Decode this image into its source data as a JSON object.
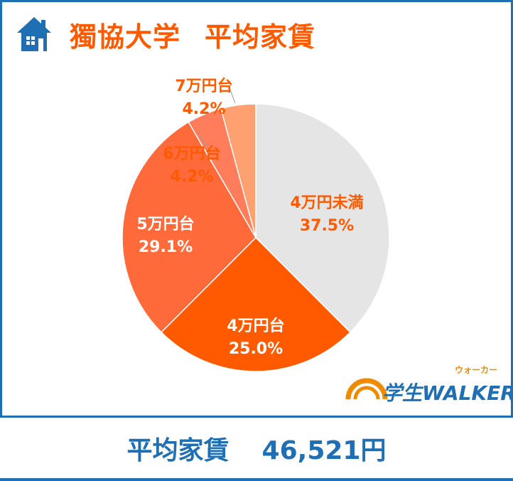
{
  "header": {
    "university": "獨協大学",
    "subject": "平均家賃"
  },
  "footer": {
    "label": "平均家賃",
    "value": "46,521円"
  },
  "logo": {
    "text": "学生WALKER",
    "kana": "ウォーカー"
  },
  "colors": {
    "brand_blue": "#1f6fb4",
    "accent_orange": "#ff5a00"
  },
  "chart_data": {
    "type": "pie",
    "title": "",
    "slices": [
      {
        "label": "4万円未満",
        "pct_label": "37.5%",
        "value": 37.5,
        "color": "#e5e5e5",
        "text_color": "#ff5a00"
      },
      {
        "label": "4万円台",
        "pct_label": "25.0%",
        "value": 25.0,
        "color": "#ff5a00",
        "text_color": "#ffffff"
      },
      {
        "label": "5万円台",
        "pct_label": "29.1%",
        "value": 29.1,
        "color": "#ff6a3a",
        "text_color": "#ffffff"
      },
      {
        "label": "6万円台",
        "pct_label": "4.2%",
        "value": 4.2,
        "color": "#ff7d5a",
        "text_color": "#ff5a00"
      },
      {
        "label": "7万円台",
        "pct_label": "4.2%",
        "value": 4.2,
        "color": "#ffa070",
        "text_color": "#ff5a00"
      }
    ],
    "start_angle_deg": 0,
    "direction": "clockwise"
  }
}
